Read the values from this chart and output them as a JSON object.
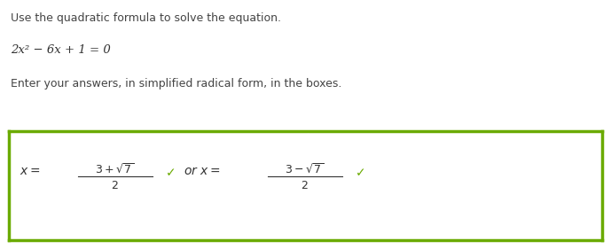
{
  "title_line1": "Use the quadratic formula to solve the equation.",
  "equation": "2x² − 6x + 1 = 0",
  "instruction": "Enter your answers, in simplified radical form, in the boxes.",
  "green_medium": "#6aaa00",
  "green_light_bg": "#dff0b0",
  "border_color": "#6aaa00",
  "text_color": "#444444",
  "eq_color": "#333333",
  "background": "#ffffff",
  "fig_w": 6.89,
  "fig_h": 2.81,
  "dpi": 100
}
